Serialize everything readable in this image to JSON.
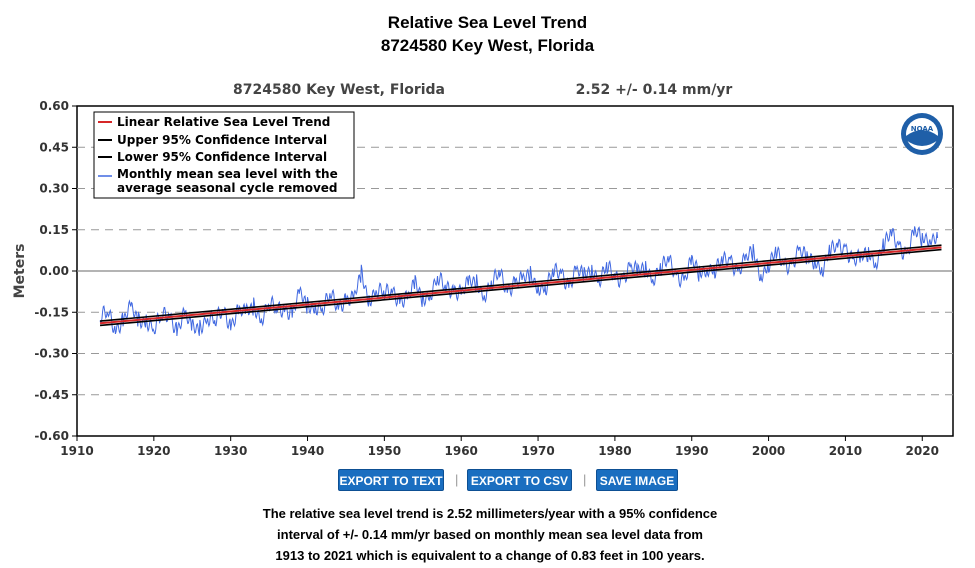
{
  "page": {
    "title": "Relative Sea Level Trend",
    "subtitle": "8724580 Key West, Florida"
  },
  "chart_header": {
    "station": "8724580 Key West, Florida",
    "trend": "2.52 +/-  0.14 mm/yr"
  },
  "logo": {
    "text": "NOAA"
  },
  "buttons": {
    "export_text": "EXPORT TO TEXT",
    "export_csv": "EXPORT TO CSV",
    "save_image": "SAVE IMAGE",
    "separator": "|"
  },
  "summary": {
    "line1": "The relative sea level trend is 2.52 millimeters/year with a 95% confidence",
    "line2": "interval of +/- 0.14 mm/yr based on monthly mean sea level data from",
    "line3": "1913 to 2021 which is equivalent to a change of 0.83 feet in 100 years."
  },
  "chart_data": {
    "type": "line",
    "title": "",
    "ylabel": "Meters",
    "xlabel": "",
    "xlim": [
      1910,
      2024
    ],
    "ylim": [
      -0.6,
      0.6
    ],
    "x_ticks": [
      1910,
      1920,
      1930,
      1940,
      1950,
      1960,
      1970,
      1980,
      1990,
      2000,
      2010,
      2020
    ],
    "y_ticks": [
      "0.60",
      "0.45",
      "0.30",
      "0.15",
      "0.00",
      "-0.15",
      "-0.30",
      "-0.45",
      "-0.60"
    ],
    "grid": "horizontal dashed",
    "legend_position": "top-left",
    "colors": {
      "trend": "#d62728",
      "ci": "#000000",
      "monthly": "#4169e1"
    },
    "legend": [
      "Linear Relative Sea Level Trend",
      "Upper 95% Confidence Interval",
      "Lower 95% Confidence Interval",
      "Monthly mean sea level with the",
      "average seasonal cycle removed"
    ],
    "series": [
      {
        "name": "Linear Relative Sea Level Trend",
        "x": [
          1913,
          2022.5
        ],
        "y": [
          -0.19,
          0.086
        ]
      },
      {
        "name": "Upper 95% Confidence Interval",
        "x": [
          1913,
          2022.5
        ],
        "y": [
          -0.182,
          0.094
        ]
      },
      {
        "name": "Lower 95% Confidence Interval",
        "x": [
          1913,
          2022.5
        ],
        "y": [
          -0.198,
          0.078
        ]
      },
      {
        "name": "Monthly mean sea level with the average seasonal cycle removed",
        "x": [
          1913,
          1914,
          1915,
          1916,
          1917,
          1918,
          1919,
          1920,
          1921,
          1922,
          1923,
          1924,
          1925,
          1926,
          1927,
          1928,
          1929,
          1930,
          1931,
          1932,
          1933,
          1934,
          1935,
          1936,
          1937,
          1938,
          1939,
          1940,
          1941,
          1942,
          1943,
          1944,
          1945,
          1946,
          1947,
          1948,
          1949,
          1950,
          1951,
          1952,
          1953,
          1954,
          1955,
          1956,
          1957,
          1958,
          1959,
          1960,
          1961,
          1962,
          1963,
          1964,
          1965,
          1966,
          1967,
          1968,
          1969,
          1970,
          1971,
          1972,
          1973,
          1974,
          1975,
          1976,
          1977,
          1978,
          1979,
          1980,
          1981,
          1982,
          1983,
          1984,
          1985,
          1986,
          1987,
          1988,
          1989,
          1990,
          1991,
          1992,
          1993,
          1994,
          1995,
          1996,
          1997,
          1998,
          1999,
          2000,
          2001,
          2002,
          2003,
          2004,
          2005,
          2006,
          2007,
          2008,
          2009,
          2010,
          2011,
          2012,
          2013,
          2014,
          2015,
          2016,
          2017,
          2018,
          2019,
          2020,
          2021,
          2022
        ],
        "y": [
          -0.18,
          -0.16,
          -0.2,
          -0.17,
          -0.15,
          -0.19,
          -0.16,
          -0.21,
          -0.18,
          -0.15,
          -0.2,
          -0.17,
          -0.22,
          -0.19,
          -0.16,
          -0.2,
          -0.14,
          -0.18,
          -0.15,
          -0.17,
          -0.12,
          -0.16,
          -0.13,
          -0.15,
          -0.12,
          -0.15,
          -0.1,
          -0.13,
          -0.11,
          -0.14,
          -0.1,
          -0.12,
          -0.09,
          -0.12,
          -0.02,
          -0.09,
          -0.06,
          -0.1,
          -0.07,
          -0.09,
          -0.11,
          -0.06,
          -0.09,
          -0.07,
          -0.04,
          -0.07,
          -0.05,
          -0.08,
          -0.06,
          -0.04,
          -0.07,
          -0.05,
          -0.02,
          -0.06,
          -0.03,
          -0.05,
          -0.02,
          -0.04,
          -0.06,
          -0.02,
          0.0,
          -0.04,
          -0.01,
          -0.03,
          0.02,
          -0.02,
          0.0,
          -0.03,
          -0.01,
          0.01,
          -0.02,
          0.02,
          -0.01,
          0.0,
          0.03,
          0.0,
          -0.03,
          0.02,
          -0.01,
          0.03,
          0.0,
          0.02,
          0.05,
          0.01,
          0.03,
          0.06,
          0.0,
          0.03,
          0.05,
          0.02,
          0.04,
          0.07,
          0.03,
          0.05,
          0.02,
          0.06,
          0.08,
          0.1,
          0.04,
          0.03,
          0.07,
          0.05,
          0.09,
          0.12,
          0.1,
          0.07,
          0.13,
          0.11,
          0.14,
          0.12
        ]
      }
    ]
  }
}
